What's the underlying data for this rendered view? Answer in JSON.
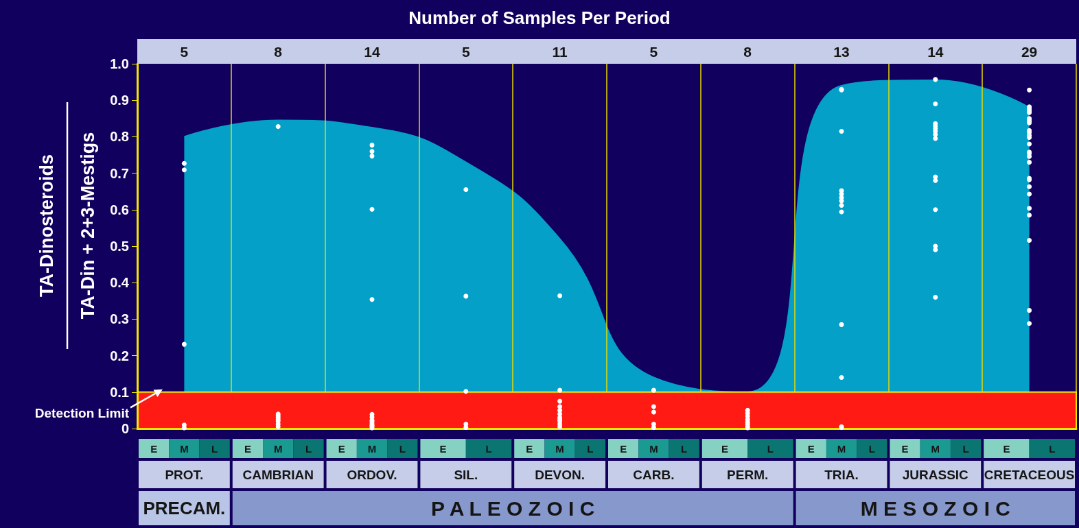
{
  "chart_data": {
    "type": "area",
    "title": "Number of Samples Per Period",
    "ylabel": "TA-Dinosteroids\nTA-Din + 2+3-Mestigs",
    "categories": [
      "PROT.",
      "CAMBRIAN",
      "ORDOV.",
      "SIL.",
      "DEVON.",
      "CARB.",
      "PERM.",
      "TRIA.",
      "JURASSIC",
      "CRETACEOUS"
    ],
    "series": [
      {
        "color": "#04a0c8",
        "values": [
          0.8,
          0.845,
          0.825,
          0.73,
          0.52,
          0.14,
          0.1,
          0.94,
          0.955,
          0.88
        ]
      },
      {
        "type": "scatter",
        "color": "#ffffff",
        "x": [
          "PROT.",
          "PROT.",
          "PROT.",
          "PROT.",
          "PROT.",
          "CAMBRIAN",
          "CAMBRIAN",
          "CAMBRIAN",
          "CAMBRIAN",
          "CAMBRIAN",
          "CAMBRIAN",
          "CAMBRIAN",
          "CAMBRIAN",
          "ORDOV.",
          "ORDOV.",
          "ORDOV.",
          "ORDOV.",
          "ORDOV.",
          "ORDOV.",
          "ORDOV.",
          "ORDOV.",
          "ORDOV.",
          "ORDOV.",
          "ORDOV.",
          "ORDOV.",
          "ORDOV.",
          "ORDOV.",
          "SIL.",
          "SIL.",
          "SIL.",
          "SIL.",
          "SIL.",
          "DEVON.",
          "DEVON.",
          "DEVON.",
          "DEVON.",
          "DEVON.",
          "DEVON.",
          "DEVON.",
          "DEVON.",
          "DEVON.",
          "DEVON.",
          "DEVON.",
          "CARB.",
          "CARB.",
          "CARB.",
          "CARB.",
          "CARB.",
          "PERM.",
          "PERM.",
          "PERM.",
          "PERM.",
          "PERM.",
          "PERM.",
          "PERM.",
          "PERM.",
          "TRIA.",
          "TRIA.",
          "TRIA.",
          "TRIA.",
          "TRIA.",
          "TRIA.",
          "TRIA.",
          "TRIA.",
          "TRIA.",
          "TRIA.",
          "TRIA.",
          "TRIA.",
          "TRIA.",
          "JURASSIC",
          "JURASSIC",
          "JURASSIC",
          "JURASSIC",
          "JURASSIC",
          "JURASSIC",
          "JURASSIC",
          "JURASSIC",
          "JURASSIC",
          "JURASSIC",
          "JURASSIC",
          "JURASSIC",
          "JURASSIC",
          "JURASSIC",
          "CRETACEOUS",
          "CRETACEOUS",
          "CRETACEOUS",
          "CRETACEOUS",
          "CRETACEOUS",
          "CRETACEOUS",
          "CRETACEOUS",
          "CRETACEOUS",
          "CRETACEOUS",
          "CRETACEOUS",
          "CRETACEOUS",
          "CRETACEOUS",
          "CRETACEOUS",
          "CRETACEOUS",
          "CRETACEOUS",
          "CRETACEOUS",
          "CRETACEOUS",
          "CRETACEOUS",
          "CRETACEOUS",
          "CRETACEOUS",
          "CRETACEOUS",
          "CRETACEOUS",
          "CRETACEOUS",
          "CRETACEOUS",
          "CRETACEOUS",
          "CRETACEOUS",
          "CRETACEOUS",
          "CRETACEOUS",
          "CRETACEOUS"
        ],
        "values": [
          0.709,
          0.727,
          0.231,
          0.01,
          0.002,
          0.828,
          0.04,
          0.035,
          0.03,
          0.025,
          0.02,
          0.012,
          0.005,
          0.777,
          0.76,
          0.747,
          0.601,
          0.354,
          0.039,
          0.031,
          0.023,
          0.02,
          0.015,
          0.01,
          0.008,
          0.005,
          0.002,
          0.655,
          0.363,
          0.102,
          0.012,
          0.003,
          0.364,
          0.105,
          0.075,
          0.06,
          0.05,
          0.04,
          0.03,
          0.025,
          0.02,
          0.012,
          0.005,
          0.105,
          0.06,
          0.045,
          0.012,
          0.003,
          0.05,
          0.042,
          0.034,
          0.025,
          0.018,
          0.012,
          0.006,
          0.002,
          0.93,
          0.928,
          0.815,
          0.652,
          0.643,
          0.633,
          0.624,
          0.612,
          0.594,
          0.285,
          0.14,
          0.005,
          0.003,
          0.957,
          0.89,
          0.836,
          0.829,
          0.822,
          0.815,
          0.806,
          0.795,
          0.69,
          0.68,
          0.6,
          0.5,
          0.49,
          0.36,
          0.928,
          0.882,
          0.876,
          0.879,
          0.871,
          0.866,
          0.846,
          0.842,
          0.838,
          0.817,
          0.812,
          0.804,
          0.798,
          0.78,
          0.758,
          0.754,
          0.746,
          0.73,
          0.686,
          0.682,
          0.663,
          0.643,
          0.604,
          0.585,
          0.516,
          0.324,
          0.288,
          0.87,
          0.85
        ]
      }
    ],
    "ylim": [
      0,
      1
    ],
    "yticks": [
      0,
      0.1,
      0.2,
      0.3,
      0.4,
      0.5,
      0.6,
      0.7,
      0.8,
      0.9,
      {
        "value": 1,
        "label": "1.0"
      }
    ],
    "grid": "x",
    "bands": [
      {
        "axis": "y",
        "from": 0,
        "to": 0.1,
        "label": "Detection Limit",
        "color": "#ff1a14"
      }
    ],
    "annotations": [
      "5",
      "8",
      "14",
      "5",
      "11",
      "5",
      "8",
      "13",
      "14",
      "29",
      "E M L",
      "E M L",
      "E M L",
      "E L",
      "E M L",
      "E M L",
      "E L",
      "E M L",
      "E M L",
      "E L",
      "PRECAM.",
      "P A L E O Z O I C",
      "M E S O Z O I C"
    ]
  }
}
